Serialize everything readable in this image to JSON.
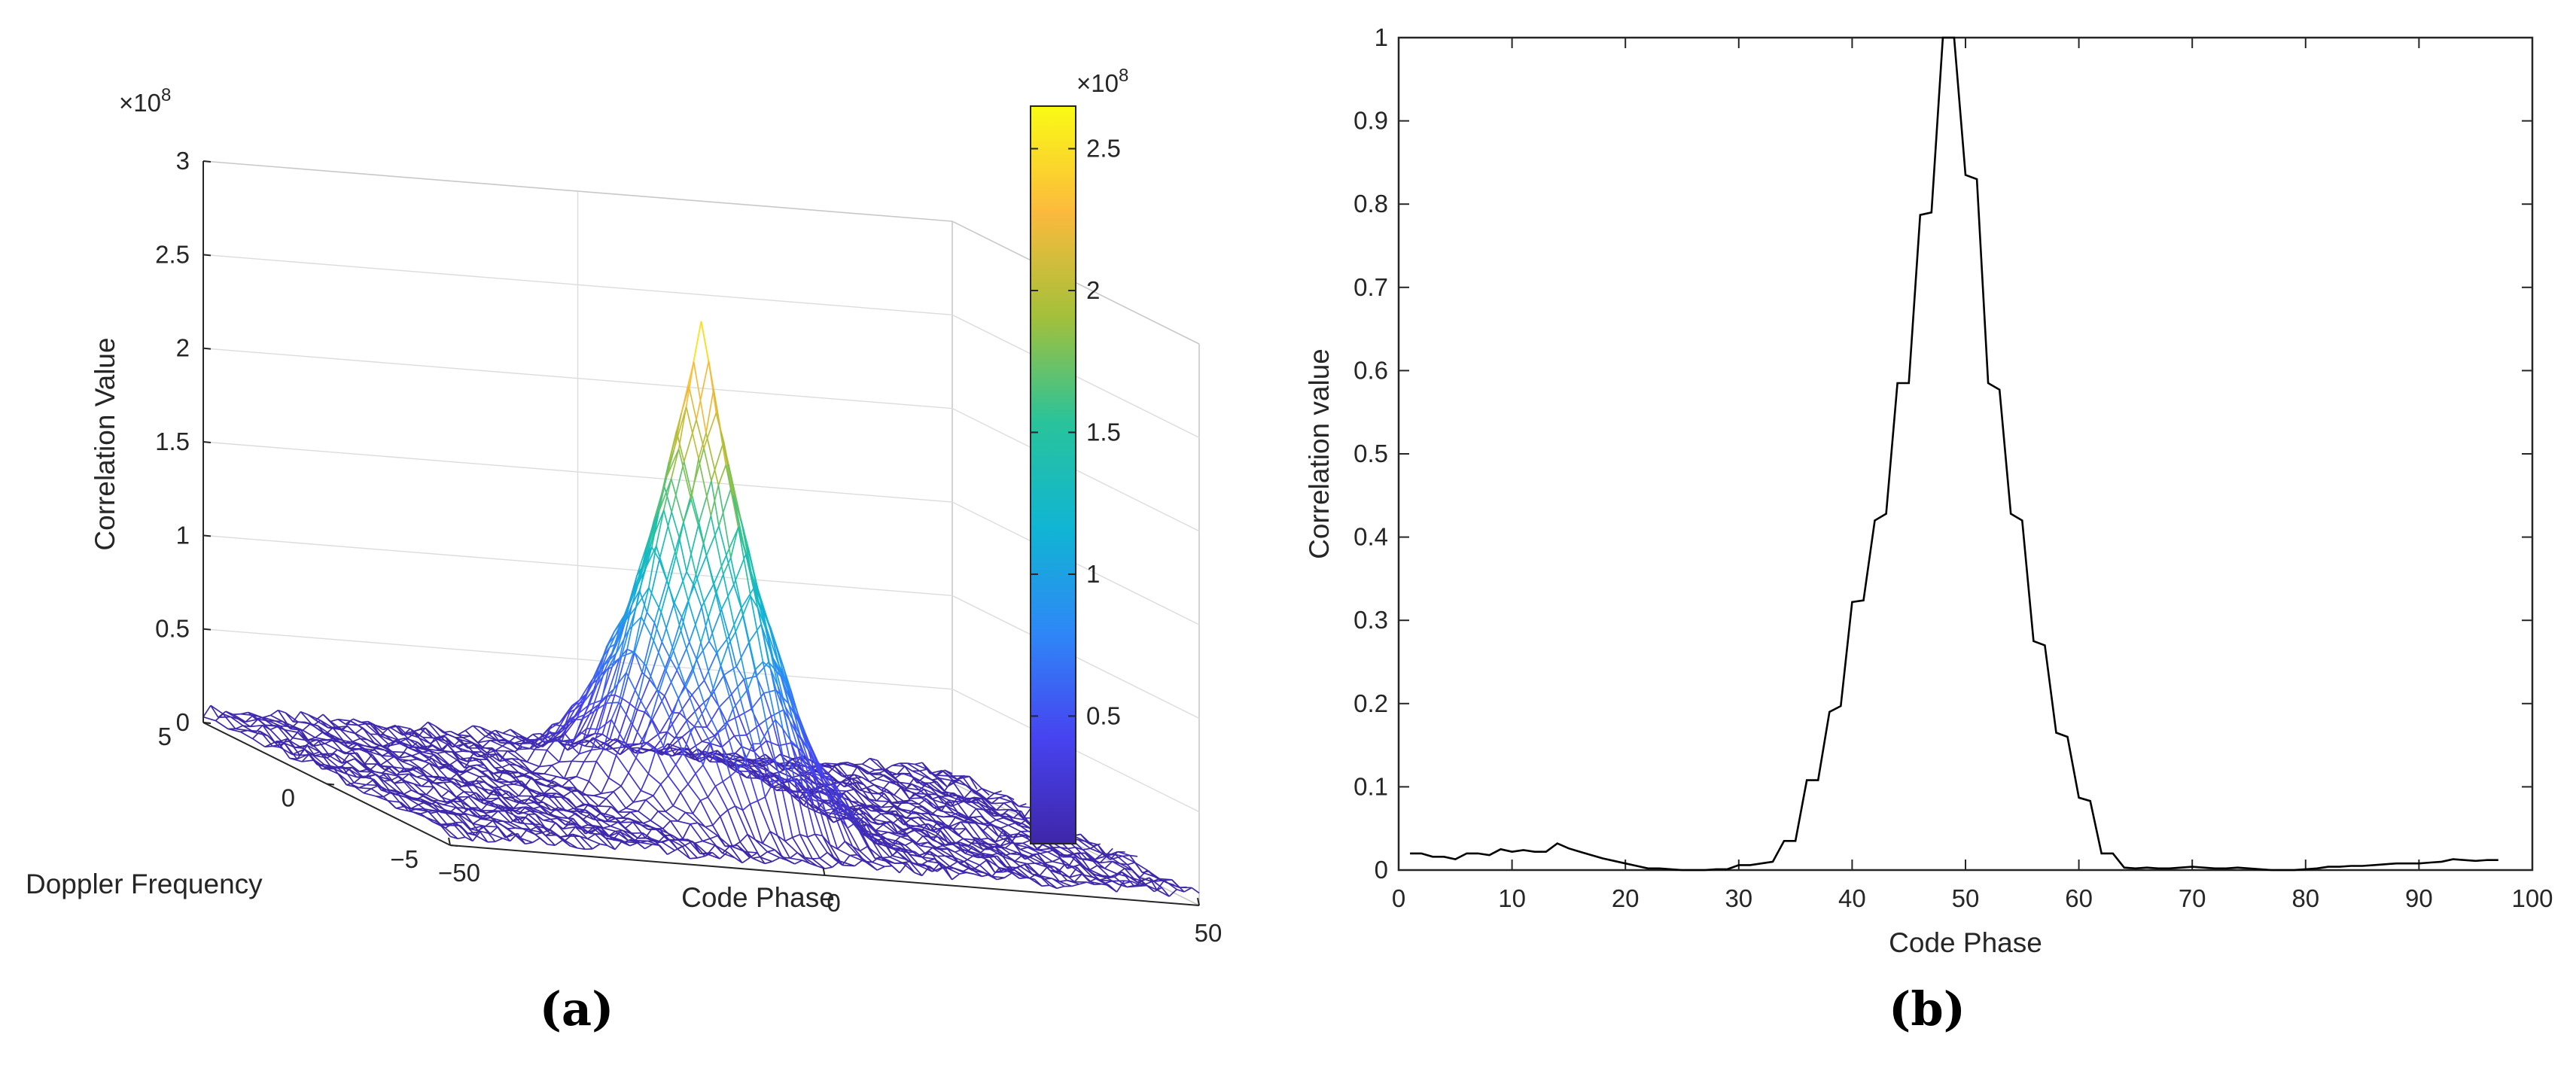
{
  "captions": [
    "(a)",
    "(b)"
  ],
  "colors": {
    "axis": "#262626",
    "grid": "#dcdcdc",
    "line": "#000000",
    "colormap": [
      "#3e26a8",
      "#4743f0",
      "#2e87f7",
      "#10b5d3",
      "#29c39b",
      "#a3c03a",
      "#fcba3d",
      "#f9fb14"
    ]
  },
  "chart_data": [
    {
      "type": "surface",
      "panel": "(a)",
      "zlabel": "Correlation Value",
      "xlabel": "Code Phase",
      "ylabel": "Doppler Frequency",
      "z_exponent": "×10",
      "z_exponent_power": "8",
      "z_ticks": [
        "0",
        "0.5",
        "1",
        "1.5",
        "2",
        "2.5",
        "3"
      ],
      "x_ticks": [
        "−50",
        "0",
        "50"
      ],
      "y_ticks": [
        "5",
        "0",
        "−5"
      ],
      "zlim": [
        0,
        3
      ],
      "xlim": [
        -50,
        50
      ],
      "ylim": [
        -5,
        5
      ],
      "peak_value": 2.55,
      "peak_code_phase": 0,
      "peak_doppler": 0,
      "colorbar": {
        "exponent": "×10",
        "exponent_power": "8",
        "ticks": [
          "0.5",
          "1",
          "1.5",
          "2",
          "2.5"
        ],
        "range": [
          0.05,
          2.65
        ]
      }
    },
    {
      "type": "line",
      "panel": "(b)",
      "xlabel": "Code Phase",
      "ylabel": "Correlation value",
      "xlim": [
        0,
        100
      ],
      "ylim": [
        0,
        1
      ],
      "x_ticks": [
        "0",
        "10",
        "20",
        "30",
        "40",
        "50",
        "60",
        "70",
        "80",
        "90",
        "100"
      ],
      "y_ticks": [
        "0",
        "0.1",
        "0.2",
        "0.3",
        "0.4",
        "0.5",
        "0.6",
        "0.7",
        "0.8",
        "0.9",
        "1"
      ],
      "grid": false,
      "x": [
        1,
        2,
        3,
        4,
        5,
        6,
        7,
        8,
        9,
        10,
        11,
        12,
        13,
        14,
        15,
        16,
        17,
        18,
        19,
        20,
        21,
        22,
        23,
        24,
        25,
        26,
        27,
        28,
        29,
        30,
        31,
        32,
        33,
        34,
        35,
        36,
        37,
        38,
        39,
        40,
        41,
        42,
        43,
        44,
        45,
        46,
        47,
        48,
        49,
        50,
        51,
        52,
        53,
        54,
        55,
        56,
        57,
        58,
        59,
        60,
        61,
        62,
        63,
        64,
        65,
        66,
        67,
        68,
        69,
        70,
        71,
        72,
        73,
        74,
        75,
        76,
        77,
        78,
        79,
        80,
        81,
        82,
        83,
        84,
        85,
        86,
        87,
        88,
        89,
        90,
        91,
        92,
        93,
        94,
        95,
        96,
        97
      ],
      "y": [
        0.02,
        0.02,
        0.016,
        0.016,
        0.013,
        0.02,
        0.02,
        0.018,
        0.025,
        0.022,
        0.024,
        0.022,
        0.022,
        0.032,
        0.026,
        0.022,
        0.018,
        0.014,
        0.011,
        0.008,
        0.005,
        0.002,
        0.002,
        0.001,
        0.0,
        0.0,
        0.0,
        0.001,
        0.001,
        0.006,
        0.006,
        0.008,
        0.01,
        0.035,
        0.035,
        0.108,
        0.108,
        0.19,
        0.197,
        0.322,
        0.324,
        0.42,
        0.428,
        0.585,
        0.585,
        0.787,
        0.79,
        1.0,
        1.0,
        0.835,
        0.83,
        0.585,
        0.577,
        0.428,
        0.42,
        0.275,
        0.27,
        0.165,
        0.16,
        0.087,
        0.083,
        0.02,
        0.02,
        0.003,
        0.002,
        0.003,
        0.002,
        0.002,
        0.003,
        0.004,
        0.003,
        0.002,
        0.002,
        0.003,
        0.002,
        0.001,
        0.0,
        0.0,
        0.0,
        0.001,
        0.002,
        0.004,
        0.004,
        0.005,
        0.005,
        0.006,
        0.007,
        0.008,
        0.008,
        0.008,
        0.009,
        0.01,
        0.013,
        0.012,
        0.011,
        0.012,
        0.012
      ]
    }
  ]
}
